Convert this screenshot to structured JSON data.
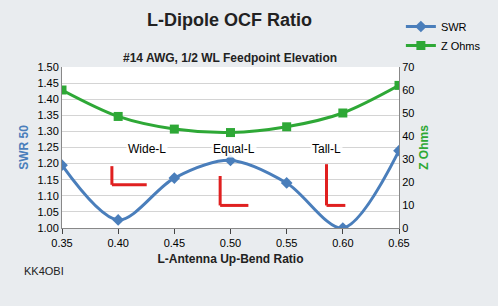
{
  "chart_data": {
    "type": "line",
    "title": "L-Dipole OCF Ratio",
    "subtitle": "#14 AWG, 1/2 WL Feedpoint Elevation",
    "x_label": "L-Antenna Up-Bend Ratio",
    "y_label": "SWR 50",
    "y2_label": "Z Ohms",
    "x": [
      0.35,
      0.4,
      0.45,
      0.5,
      0.55,
      0.6,
      0.65
    ],
    "series": [
      {
        "name": "SWR",
        "color": "#4a7ebb",
        "marker": "diamond",
        "line_style": "solid",
        "values": [
          1.195,
          1.025,
          1.155,
          1.21,
          1.14,
          1.0,
          1.24
        ]
      },
      {
        "name": "Z Ohms",
        "color": "#2ea836",
        "marker": "square",
        "line_style": "solid",
        "axis": "y2",
        "values": [
          60,
          48.5,
          43,
          41.5,
          44,
          50,
          62
        ]
      }
    ],
    "xlim": [
      0.35,
      0.65
    ],
    "xticks": [
      0.35,
      {
        "value": 0.4,
        "label": "0.40"
      },
      0.45,
      {
        "value": 0.5,
        "label": "0.50"
      },
      0.55,
      {
        "value": 0.6,
        "label": "0.60"
      },
      0.65
    ],
    "ylim": [
      1.0,
      1.5
    ],
    "yticks": [
      {
        "value": 1,
        "label": "1.00"
      },
      1.05,
      {
        "value": 1.1,
        "label": "1.10"
      },
      1.15,
      {
        "value": 1.2,
        "label": "1.20"
      },
      1.25,
      {
        "value": 1.3,
        "label": "1.30"
      },
      1.35,
      {
        "value": 1.4,
        "label": "1.40"
      },
      1.45,
      {
        "value": 1.5,
        "label": "1.50"
      }
    ],
    "y2lim": [
      0,
      70
    ],
    "y2ticks": [
      0,
      10,
      20,
      30,
      40,
      50,
      60,
      70
    ],
    "grid": true,
    "legend": "top right",
    "annotations": [
      "Wide-L",
      "Equal-L",
      "Tall-L"
    ],
    "credit": "KK4OBI"
  }
}
